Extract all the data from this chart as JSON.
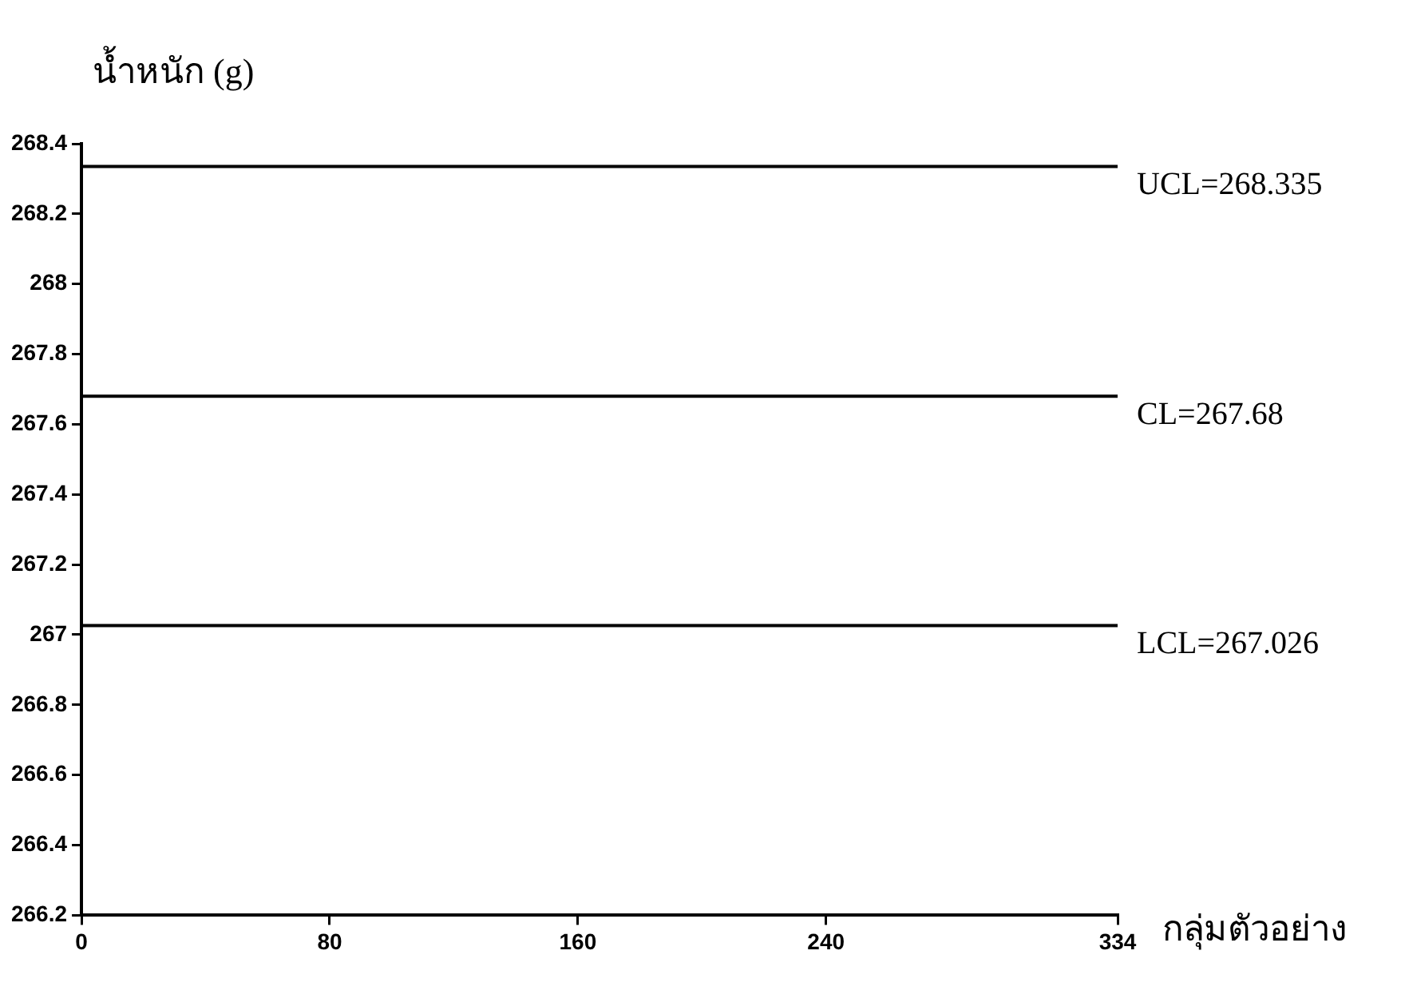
{
  "chart_data": {
    "type": "line",
    "ylabel": "น้ำหนัก (g)",
    "xlabel": "กลุ่มตัวอย่าง",
    "xlim": [
      0,
      334
    ],
    "xticks": [
      0,
      80,
      160,
      240,
      334
    ],
    "ylim": [
      266.2,
      268.4
    ],
    "yticks": [
      266.2,
      266.4,
      266.6,
      266.8,
      267,
      267.2,
      267.4,
      267.6,
      267.8,
      268,
      268.2,
      268.4
    ],
    "grid": false,
    "legend": false,
    "ref_lines": [
      {
        "axis": "y",
        "value": 268.335,
        "label": "UCL=268.335",
        "color": "#000000"
      },
      {
        "axis": "y",
        "value": 267.68,
        "label": "CL=267.68",
        "color": "#000000"
      },
      {
        "axis": "y",
        "value": 267.026,
        "label": "LCL=267.026",
        "color": "#000000"
      }
    ]
  }
}
